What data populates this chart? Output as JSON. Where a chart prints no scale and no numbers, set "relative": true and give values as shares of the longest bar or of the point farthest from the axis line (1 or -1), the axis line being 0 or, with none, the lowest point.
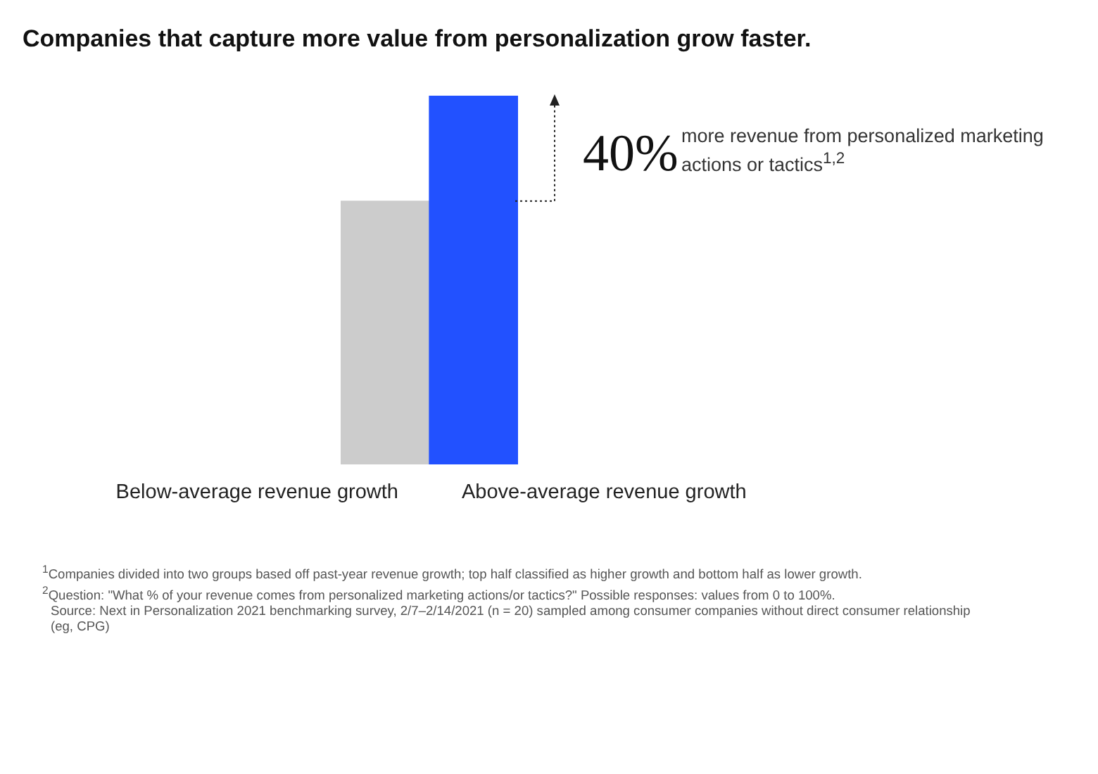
{
  "chart_data": {
    "type": "bar",
    "title": "Companies that capture more value from personalization grow faster.",
    "categories": [
      "Below-average revenue growth",
      "Above-average revenue growth"
    ],
    "values": [
      0.714,
      1
    ],
    "colors": [
      "#cccccc",
      "#2251ff"
    ],
    "relative": true,
    "annotations": [
      "40%",
      "more revenue from personalized marketing actions or tactics$^{1,2}$",
      "$^{1}$Companies divided into two groups based off past-year revenue growth; top half classified as higher growth and bottom half as lower growth.",
      "$^{2}$Question: \"What % of your revenue comes from personalized marketing actions/or tactics?\" Possible responses: values from 0 to 100%.",
      "Source: Next in Personalization 2021 benchmarking survey, 2/7–2/14/2021 (n = 20) sampled among consumer companies without direct consumer relationship (eg, CPG)"
    ]
  }
}
